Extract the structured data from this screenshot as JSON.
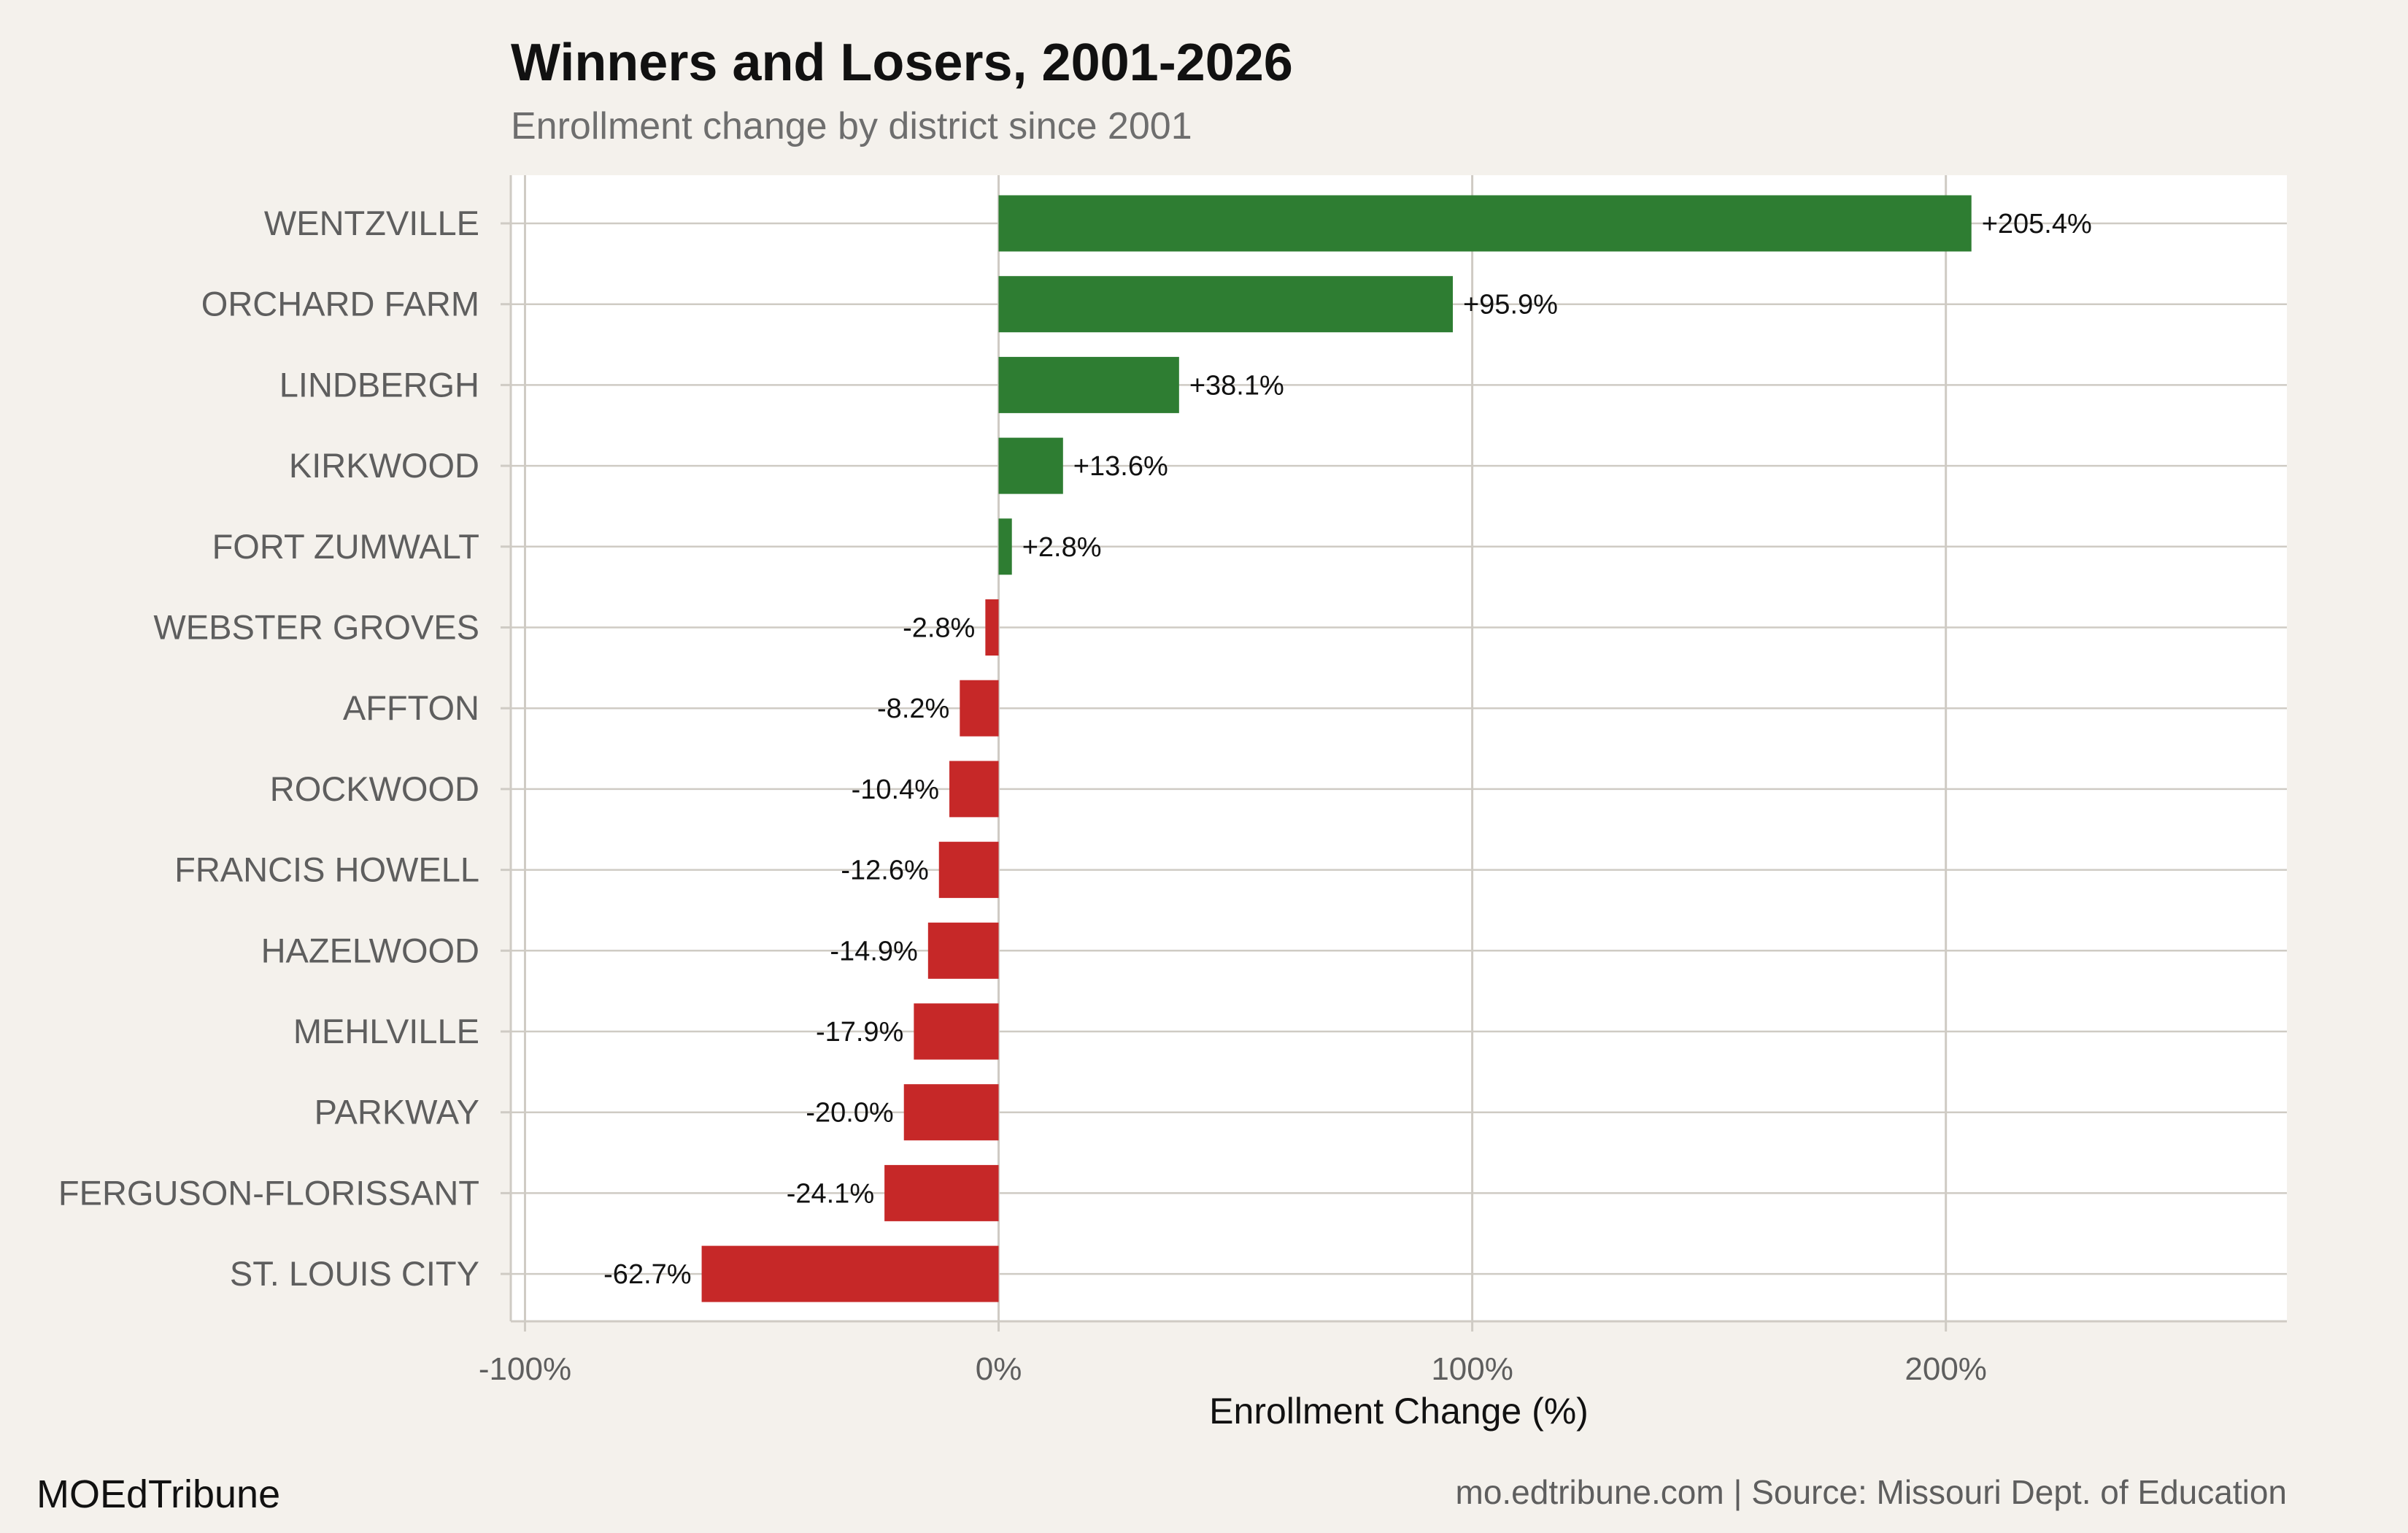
{
  "colors": {
    "background": "#f4f1ec",
    "panel": "#ffffff",
    "grid": "#cfcbc4",
    "positive": "#2e7d32",
    "negative": "#c62828"
  },
  "footer": {
    "brand": "MOEdTribune",
    "source": "mo.edtribune.com | Source: Missouri Dept. of Education"
  },
  "chart_data": {
    "type": "bar",
    "orientation": "horizontal",
    "title": "Winners and Losers, 2001-2026",
    "subtitle": "Enrollment change by district since 2001",
    "xlabel": "Enrollment Change (%)",
    "ylabel": "",
    "xlim": [
      -103,
      272
    ],
    "xticks": [
      -100,
      0,
      100,
      200
    ],
    "xtick_labels": [
      "-100%",
      "0%",
      "100%",
      "200%"
    ],
    "grid": true,
    "legend": "none",
    "categories": [
      "WENTZVILLE",
      "ORCHARD FARM",
      "LINDBERGH",
      "KIRKWOOD",
      "FORT ZUMWALT",
      "WEBSTER GROVES",
      "AFFTON",
      "ROCKWOOD",
      "FRANCIS HOWELL",
      "HAZELWOOD",
      "MEHLVILLE",
      "PARKWAY",
      "FERGUSON-FLORISSANT",
      "ST. LOUIS CITY"
    ],
    "values": [
      205.4,
      95.9,
      38.1,
      13.6,
      2.8,
      -2.8,
      -8.2,
      -10.4,
      -12.6,
      -14.9,
      -17.9,
      -20.0,
      -24.1,
      -62.7
    ],
    "data_labels": [
      "+205.4%",
      "+95.9%",
      "+38.1%",
      "+13.6%",
      "+2.8%",
      "-2.8%",
      "-8.2%",
      "-10.4%",
      "-12.6%",
      "-14.9%",
      "-17.9%",
      "-20.0%",
      "-24.1%",
      "-62.7%"
    ]
  }
}
